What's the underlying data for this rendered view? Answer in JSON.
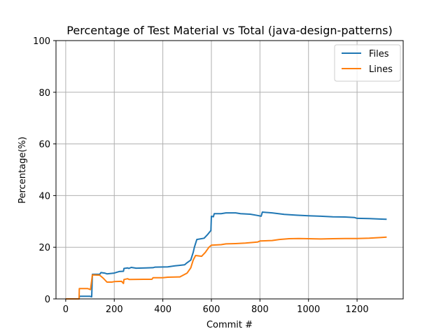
{
  "chart_data": {
    "type": "line",
    "title": "Percentage of Test Material vs Total (java-design-patterns)",
    "xlabel": "Commit #",
    "ylabel": "Percentage(%)",
    "xlim": [
      -40,
      1390
    ],
    "ylim": [
      0,
      100
    ],
    "xticks": [
      0,
      200,
      400,
      600,
      800,
      1000,
      1200
    ],
    "yticks": [
      0,
      20,
      40,
      60,
      80,
      100
    ],
    "grid": true,
    "legend_position": "top-right",
    "series": [
      {
        "name": "Files",
        "color": "#1f77b4",
        "points": [
          [
            0,
            0
          ],
          [
            55,
            0
          ],
          [
            56,
            1
          ],
          [
            100,
            1
          ],
          [
            107,
            0.8
          ],
          [
            110,
            9.5
          ],
          [
            140,
            9.5
          ],
          [
            145,
            10.2
          ],
          [
            160,
            10
          ],
          [
            170,
            9.7
          ],
          [
            200,
            10
          ],
          [
            220,
            10.6
          ],
          [
            238,
            10.7
          ],
          [
            240,
            11.8
          ],
          [
            255,
            12
          ],
          [
            260,
            11.8
          ],
          [
            270,
            12.2
          ],
          [
            290,
            11.9
          ],
          [
            330,
            12
          ],
          [
            360,
            12.1
          ],
          [
            368,
            12.3
          ],
          [
            420,
            12.4
          ],
          [
            450,
            12.8
          ],
          [
            490,
            13.2
          ],
          [
            500,
            14
          ],
          [
            515,
            15
          ],
          [
            525,
            18
          ],
          [
            530,
            20
          ],
          [
            540,
            23
          ],
          [
            570,
            23.5
          ],
          [
            585,
            25
          ],
          [
            598,
            26.5
          ],
          [
            600,
            32
          ],
          [
            608,
            31.8
          ],
          [
            612,
            33
          ],
          [
            640,
            33
          ],
          [
            660,
            33.3
          ],
          [
            700,
            33.3
          ],
          [
            720,
            33
          ],
          [
            760,
            32.8
          ],
          [
            790,
            32.3
          ],
          [
            805,
            32
          ],
          [
            810,
            33.6
          ],
          [
            850,
            33.3
          ],
          [
            900,
            32.7
          ],
          [
            950,
            32.4
          ],
          [
            1000,
            32.2
          ],
          [
            1050,
            32
          ],
          [
            1100,
            31.8
          ],
          [
            1150,
            31.7
          ],
          [
            1190,
            31.5
          ],
          [
            1200,
            31.2
          ],
          [
            1250,
            31.1
          ],
          [
            1300,
            30.9
          ],
          [
            1322,
            30.8
          ]
        ]
      },
      {
        "name": "Lines",
        "color": "#ff7f0e",
        "points": [
          [
            0,
            0
          ],
          [
            55,
            0
          ],
          [
            56,
            4
          ],
          [
            90,
            4
          ],
          [
            102,
            3.6
          ],
          [
            110,
            9.3
          ],
          [
            140,
            9.2
          ],
          [
            155,
            8
          ],
          [
            170,
            6.5
          ],
          [
            190,
            6.5
          ],
          [
            200,
            6.7
          ],
          [
            230,
            6.8
          ],
          [
            238,
            6
          ],
          [
            240,
            7.5
          ],
          [
            255,
            7.8
          ],
          [
            262,
            7.5
          ],
          [
            320,
            7.6
          ],
          [
            355,
            7.6
          ],
          [
            360,
            8.2
          ],
          [
            400,
            8.2
          ],
          [
            420,
            8.4
          ],
          [
            470,
            8.5
          ],
          [
            500,
            10
          ],
          [
            515,
            12
          ],
          [
            525,
            15
          ],
          [
            535,
            16.8
          ],
          [
            560,
            16.5
          ],
          [
            575,
            18
          ],
          [
            590,
            20
          ],
          [
            600,
            20.8
          ],
          [
            640,
            21
          ],
          [
            660,
            21.3
          ],
          [
            700,
            21.4
          ],
          [
            740,
            21.6
          ],
          [
            790,
            22
          ],
          [
            800,
            22.4
          ],
          [
            850,
            22.6
          ],
          [
            880,
            23
          ],
          [
            920,
            23.3
          ],
          [
            960,
            23.4
          ],
          [
            1000,
            23.3
          ],
          [
            1050,
            23.2
          ],
          [
            1100,
            23.3
          ],
          [
            1150,
            23.4
          ],
          [
            1200,
            23.4
          ],
          [
            1250,
            23.5
          ],
          [
            1300,
            23.8
          ],
          [
            1322,
            23.9
          ]
        ]
      }
    ]
  }
}
